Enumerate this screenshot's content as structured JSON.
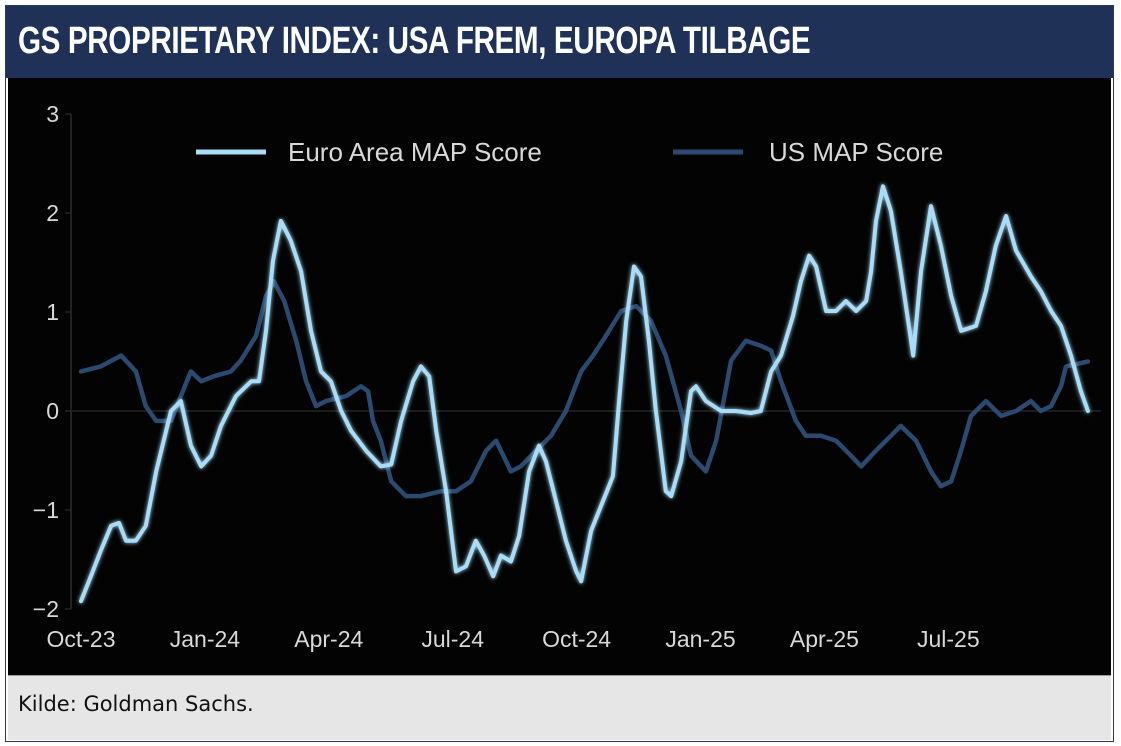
{
  "title": "GS PROPRIETARY INDEX: USA FREM, EUROPA TILBAGE",
  "source": "Kilde:  Goldman Sachs.",
  "chart_data": {
    "type": "line",
    "title": "GS PROPRIETARY INDEX: USA FREM, EUROPA TILBAGE",
    "xlabel": "",
    "ylabel": "",
    "x_unit": "months since Oct-23",
    "xlim": [
      0,
      24.4
    ],
    "ylim": [
      -2,
      3
    ],
    "yticks": [
      3,
      2,
      1,
      0,
      -1,
      -2
    ],
    "ytick_labels": [
      "3",
      "2",
      "1",
      "0",
      "−1",
      "−2"
    ],
    "xticks": [
      0,
      3,
      6,
      9,
      12,
      15,
      18,
      21
    ],
    "xtick_labels": [
      "Oct-23",
      "Jan-24",
      "Apr-24",
      "Jul-24",
      "Oct-24",
      "Jan-25",
      "Apr-25",
      "Jul-25"
    ],
    "legend_position": "top",
    "colors": {
      "euro": "#a9dcf7",
      "us": "#2b4a70"
    },
    "series": [
      {
        "name": "Euro Area MAP Score",
        "key": "euro",
        "points": [
          [
            0,
            -1.92
          ],
          [
            0.24,
            -1.67
          ],
          [
            0.48,
            -1.41
          ],
          [
            0.73,
            -1.16
          ],
          [
            0.92,
            -1.13
          ],
          [
            1.09,
            -1.31
          ],
          [
            1.33,
            -1.31
          ],
          [
            1.57,
            -1.16
          ],
          [
            1.82,
            -0.61
          ],
          [
            2.18,
            0
          ],
          [
            2.42,
            0.1
          ],
          [
            2.66,
            -0.35
          ],
          [
            2.91,
            -0.56
          ],
          [
            3.15,
            -0.45
          ],
          [
            3.39,
            -0.15
          ],
          [
            3.75,
            0.15
          ],
          [
            4.12,
            0.3
          ],
          [
            4.31,
            0.3
          ],
          [
            4.48,
            0.81
          ],
          [
            4.65,
            1.52
          ],
          [
            4.84,
            1.92
          ],
          [
            5.08,
            1.72
          ],
          [
            5.33,
            1.41
          ],
          [
            5.57,
            0.81
          ],
          [
            5.81,
            0.4
          ],
          [
            6.05,
            0.3
          ],
          [
            6.3,
            0
          ],
          [
            6.54,
            -0.2
          ],
          [
            6.9,
            -0.4
          ],
          [
            7.26,
            -0.56
          ],
          [
            7.51,
            -0.54
          ],
          [
            7.75,
            -0.1
          ],
          [
            8.04,
            0.3
          ],
          [
            8.23,
            0.45
          ],
          [
            8.43,
            0.35
          ],
          [
            8.6,
            -0.2
          ],
          [
            8.84,
            -0.81
          ],
          [
            9.08,
            -1.62
          ],
          [
            9.32,
            -1.57
          ],
          [
            9.56,
            -1.31
          ],
          [
            9.76,
            -1.46
          ],
          [
            9.98,
            -1.67
          ],
          [
            10.17,
            -1.46
          ],
          [
            10.41,
            -1.52
          ],
          [
            10.61,
            -1.26
          ],
          [
            10.85,
            -0.61
          ],
          [
            11.09,
            -0.35
          ],
          [
            11.26,
            -0.51
          ],
          [
            11.5,
            -0.91
          ],
          [
            11.74,
            -1.31
          ],
          [
            11.99,
            -1.62
          ],
          [
            12.11,
            -1.72
          ],
          [
            12.35,
            -1.21
          ],
          [
            12.59,
            -0.96
          ],
          [
            12.88,
            -0.66
          ],
          [
            13.03,
            0.1
          ],
          [
            13.2,
            0.91
          ],
          [
            13.39,
            1.46
          ],
          [
            13.56,
            1.36
          ],
          [
            13.75,
            0.71
          ],
          [
            13.92,
            0
          ],
          [
            14.16,
            -0.81
          ],
          [
            14.29,
            -0.86
          ],
          [
            14.53,
            -0.51
          ],
          [
            14.77,
            0.2
          ],
          [
            14.89,
            0.25
          ],
          [
            15.13,
            0.1
          ],
          [
            15.5,
            0
          ],
          [
            15.86,
            0
          ],
          [
            16.22,
            -0.02
          ],
          [
            16.46,
            0
          ],
          [
            16.71,
            0.4
          ],
          [
            16.95,
            0.56
          ],
          [
            17.24,
            0.96
          ],
          [
            17.43,
            1.31
          ],
          [
            17.63,
            1.57
          ],
          [
            17.8,
            1.46
          ],
          [
            18.04,
            1.01
          ],
          [
            18.28,
            1.01
          ],
          [
            18.52,
            1.11
          ],
          [
            18.77,
            1.01
          ],
          [
            19.01,
            1.11
          ],
          [
            19.13,
            1.41
          ],
          [
            19.25,
            1.92
          ],
          [
            19.42,
            2.27
          ],
          [
            19.61,
            2.02
          ],
          [
            19.85,
            1.41
          ],
          [
            20.1,
            0.71
          ],
          [
            20.15,
            0.56
          ],
          [
            20.34,
            1.41
          ],
          [
            20.58,
            2.07
          ],
          [
            20.82,
            1.67
          ],
          [
            21.07,
            1.16
          ],
          [
            21.31,
            0.81
          ],
          [
            21.67,
            0.86
          ],
          [
            21.91,
            1.21
          ],
          [
            22.15,
            1.67
          ],
          [
            22.4,
            1.97
          ],
          [
            22.64,
            1.62
          ],
          [
            23.0,
            1.36
          ],
          [
            23.24,
            1.21
          ],
          [
            23.49,
            1.01
          ],
          [
            23.73,
            0.86
          ],
          [
            23.97,
            0.56
          ],
          [
            24.21,
            0.2
          ],
          [
            24.38,
            0
          ]
        ]
      },
      {
        "name": "US MAP Score",
        "key": "us",
        "points": [
          [
            0,
            0.4
          ],
          [
            0.48,
            0.45
          ],
          [
            0.97,
            0.56
          ],
          [
            1.33,
            0.4
          ],
          [
            1.57,
            0.05
          ],
          [
            1.82,
            -0.1
          ],
          [
            2.18,
            -0.1
          ],
          [
            2.42,
            0.15
          ],
          [
            2.66,
            0.4
          ],
          [
            2.91,
            0.3
          ],
          [
            3.2,
            0.35
          ],
          [
            3.63,
            0.4
          ],
          [
            3.87,
            0.51
          ],
          [
            4.24,
            0.76
          ],
          [
            4.48,
            1.16
          ],
          [
            4.67,
            1.31
          ],
          [
            4.92,
            1.11
          ],
          [
            5.21,
            0.71
          ],
          [
            5.45,
            0.3
          ],
          [
            5.69,
            0.05
          ],
          [
            5.93,
            0.1
          ],
          [
            6.42,
            0.15
          ],
          [
            6.78,
            0.25
          ],
          [
            6.95,
            0.2
          ],
          [
            7.07,
            -0.1
          ],
          [
            7.26,
            -0.3
          ],
          [
            7.51,
            -0.71
          ],
          [
            7.87,
            -0.86
          ],
          [
            8.23,
            -0.86
          ],
          [
            8.72,
            -0.81
          ],
          [
            9.08,
            -0.81
          ],
          [
            9.44,
            -0.71
          ],
          [
            9.81,
            -0.4
          ],
          [
            10.05,
            -0.3
          ],
          [
            10.41,
            -0.61
          ],
          [
            10.65,
            -0.56
          ],
          [
            11.02,
            -0.4
          ],
          [
            11.38,
            -0.25
          ],
          [
            11.74,
            0
          ],
          [
            12.11,
            0.4
          ],
          [
            12.4,
            0.56
          ],
          [
            12.71,
            0.76
          ],
          [
            13.08,
            1.01
          ],
          [
            13.44,
            1.06
          ],
          [
            13.8,
            0.91
          ],
          [
            14.16,
            0.56
          ],
          [
            14.53,
            0
          ],
          [
            14.77,
            -0.45
          ],
          [
            15.13,
            -0.61
          ],
          [
            15.38,
            -0.3
          ],
          [
            15.74,
            0.51
          ],
          [
            16.1,
            0.71
          ],
          [
            16.46,
            0.66
          ],
          [
            16.71,
            0.61
          ],
          [
            16.95,
            0.3
          ],
          [
            17.31,
            -0.1
          ],
          [
            17.55,
            -0.25
          ],
          [
            17.92,
            -0.25
          ],
          [
            18.28,
            -0.3
          ],
          [
            18.64,
            -0.45
          ],
          [
            18.89,
            -0.56
          ],
          [
            19.25,
            -0.4
          ],
          [
            19.61,
            -0.25
          ],
          [
            19.85,
            -0.15
          ],
          [
            20.22,
            -0.3
          ],
          [
            20.58,
            -0.61
          ],
          [
            20.82,
            -0.76
          ],
          [
            21.07,
            -0.71
          ],
          [
            21.31,
            -0.4
          ],
          [
            21.55,
            -0.05
          ],
          [
            21.91,
            0.1
          ],
          [
            22.28,
            -0.05
          ],
          [
            22.64,
            0
          ],
          [
            23.0,
            0.1
          ],
          [
            23.24,
            0
          ],
          [
            23.49,
            0.05
          ],
          [
            23.73,
            0.25
          ],
          [
            23.85,
            0.45
          ],
          [
            24.38,
            0.5
          ]
        ]
      }
    ]
  }
}
